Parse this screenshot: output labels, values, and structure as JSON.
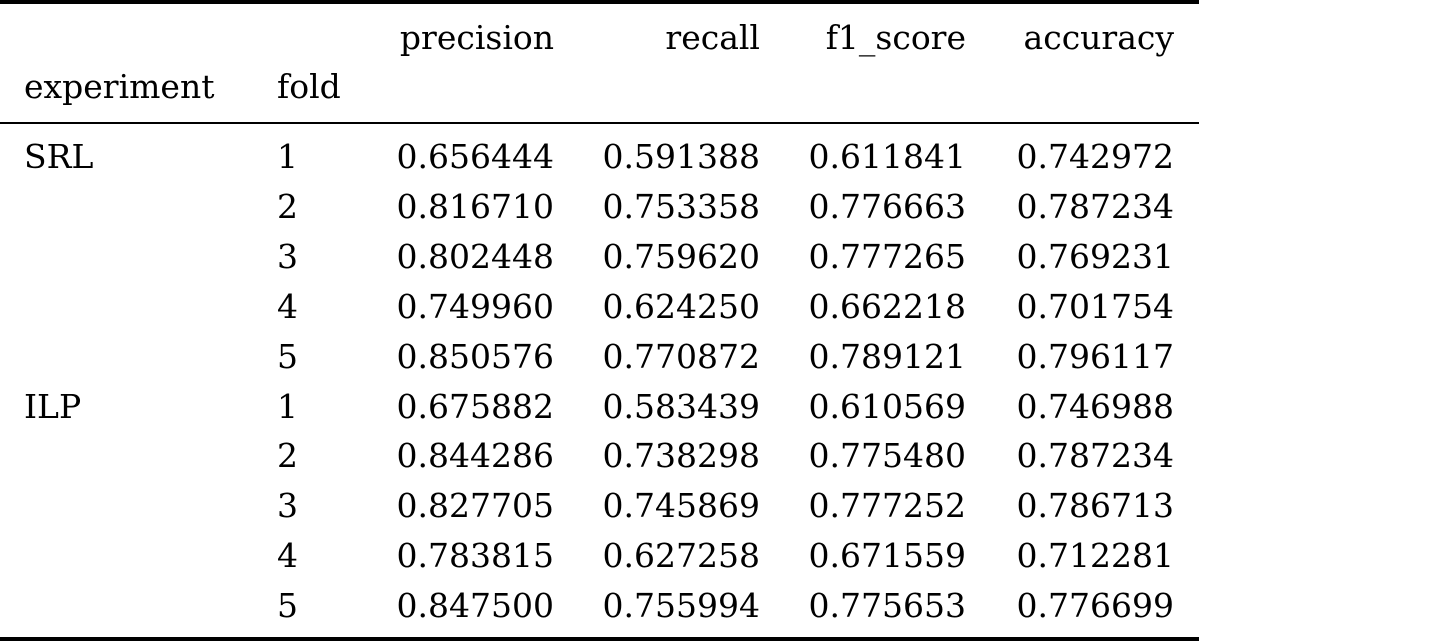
{
  "table": {
    "headers": {
      "experiment": "experiment",
      "fold": "fold",
      "precision": "precision",
      "recall": "recall",
      "f1_score": "f1_score",
      "accuracy": "accuracy"
    },
    "groups": [
      {
        "experiment": "SRL",
        "rows": [
          {
            "fold": "1",
            "precision": "0.656444",
            "recall": "0.591388",
            "f1_score": "0.611841",
            "accuracy": "0.742972"
          },
          {
            "fold": "2",
            "precision": "0.816710",
            "recall": "0.753358",
            "f1_score": "0.776663",
            "accuracy": "0.787234"
          },
          {
            "fold": "3",
            "precision": "0.802448",
            "recall": "0.759620",
            "f1_score": "0.777265",
            "accuracy": "0.769231"
          },
          {
            "fold": "4",
            "precision": "0.749960",
            "recall": "0.624250",
            "f1_score": "0.662218",
            "accuracy": "0.701754"
          },
          {
            "fold": "5",
            "precision": "0.850576",
            "recall": "0.770872",
            "f1_score": "0.789121",
            "accuracy": "0.796117"
          }
        ]
      },
      {
        "experiment": "ILP",
        "rows": [
          {
            "fold": "1",
            "precision": "0.675882",
            "recall": "0.583439",
            "f1_score": "0.610569",
            "accuracy": "0.746988"
          },
          {
            "fold": "2",
            "precision": "0.844286",
            "recall": "0.738298",
            "f1_score": "0.775480",
            "accuracy": "0.787234"
          },
          {
            "fold": "3",
            "precision": "0.827705",
            "recall": "0.745869",
            "f1_score": "0.777252",
            "accuracy": "0.786713"
          },
          {
            "fold": "4",
            "precision": "0.783815",
            "recall": "0.627258",
            "f1_score": "0.671559",
            "accuracy": "0.712281"
          },
          {
            "fold": "5",
            "precision": "0.847500",
            "recall": "0.755994",
            "f1_score": "0.775653",
            "accuracy": "0.776699"
          }
        ]
      }
    ]
  }
}
